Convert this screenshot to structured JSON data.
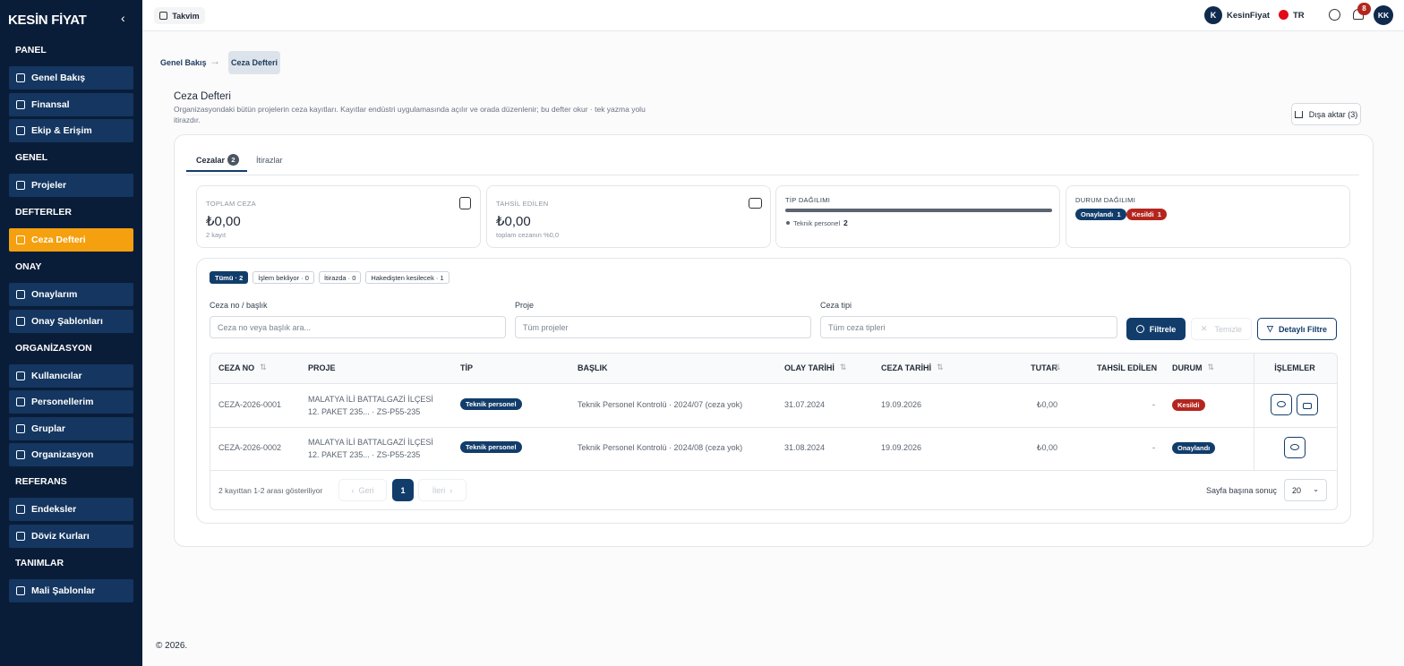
{
  "sidebar": {
    "logo": "KESİN FİYAT",
    "sections": [
      {
        "title": "PANEL",
        "items": [
          "Genel Bakış",
          "Finansal",
          "Ekip & Erişim"
        ]
      },
      {
        "title": "GENEL",
        "items": [
          "Projeler"
        ]
      },
      {
        "title": "DEFTERLER",
        "items": [
          "Ceza Defteri"
        ]
      },
      {
        "title": "ONAY",
        "items": [
          "Onaylarım",
          "Onay Şablonları"
        ]
      },
      {
        "title": "ORGANİZASYON",
        "items": [
          "Kullanıcılar",
          "Personellerim",
          "Gruplar",
          "Organizasyon"
        ]
      },
      {
        "title": "REFERANS",
        "items": [
          "Endeksler",
          "Döviz Kurları"
        ]
      },
      {
        "title": "TANIMLAR",
        "items": [
          "Mali Şablonlar"
        ]
      }
    ]
  },
  "topbar": {
    "calendar": "Takvim",
    "org_initial": "K",
    "org": "KesinFiyat",
    "lang": "TR",
    "notifications": 8,
    "avatar": "KK"
  },
  "breadcrumb": [
    "Genel Bakış",
    "Ceza Defteri"
  ],
  "header": {
    "title": "Ceza Defteri",
    "description": "Organizasyondaki bütün projelerin ceza kayıtları. Kayıtlar endüstri uygulamasında açılır ve orada düzenlenir; bu defter okur · tek yazma yolu itirazdır.",
    "export": "Dışa aktar (3)"
  },
  "tabs": [
    {
      "label": "Cezalar",
      "count": 2
    },
    {
      "label": "İtirazlar"
    }
  ],
  "stats": {
    "total": {
      "label": "TOPLAM CEZA",
      "value": "₺0,00",
      "note": "2 kayıt"
    },
    "collected": {
      "label": "TAHSİL EDİLEN",
      "value": "₺0,00",
      "note": "toplam cezanın %0,0"
    },
    "types": {
      "label": "TİP DAĞILIMI",
      "items": [
        {
          "name": "Teknik personel",
          "count": 2
        }
      ]
    },
    "statuses": {
      "label": "DURUM DAĞILIMI",
      "items": [
        {
          "name": "Onaylandı",
          "count": 1
        },
        {
          "name": "Kesildi",
          "count": 1
        }
      ]
    }
  },
  "chips": [
    "Tümü · 2",
    "İşlem bekliyor · 0",
    "İtirazda · 0",
    "Hakedişten kesilecek · 1"
  ],
  "filters": [
    {
      "label": "Ceza no / başlık",
      "placeholder": "Ceza no veya başlık ara..."
    },
    {
      "label": "Proje",
      "placeholder": "Tüm projeler"
    },
    {
      "label": "Ceza tipi",
      "placeholder": "Tüm ceza tipleri"
    }
  ],
  "buttons": {
    "filter": "Filtrele",
    "clear": "Temizle",
    "advanced": "Detaylı Filtre"
  },
  "table": {
    "columns": [
      "CEZA NO",
      "PROJE",
      "TİP",
      "BAŞLIK",
      "OLAY TARİHİ",
      "CEZA TARİHİ",
      "TUTAR",
      "TAHSİL EDİLEN",
      "DURUM",
      "İŞLEMLER"
    ],
    "rows": [
      [
        "CEZA-2026-0001",
        "MALATYA İLİ BATTALGAZİ İLÇESİ 12. PAKET 235... · ZS-P55-235",
        "Teknik personel",
        "Teknik Personel Kontrolü · 2024/07 (ceza yok)",
        "31.07.2024",
        "19.09.2026",
        "₺0,00",
        "-",
        "Kesildi"
      ],
      [
        "CEZA-2026-0002",
        "MALATYA İLİ BATTALGAZİ İLÇESİ 12. PAKET 235... · ZS-P55-235",
        "Teknik personel",
        "Teknik Personel Kontrolü · 2024/08 (ceza yok)",
        "31.08.2024",
        "19.09.2026",
        "₺0,00",
        "-",
        "Onaylandı"
      ]
    ]
  },
  "pagination": {
    "summary": "2 kayıttan 1-2 arası gösteriliyor",
    "prev": "Geri",
    "page": 1,
    "next": "İleri",
    "per_page_label": "Sayfa başına sonuç",
    "per_page": 20
  },
  "footer": "© 2026."
}
